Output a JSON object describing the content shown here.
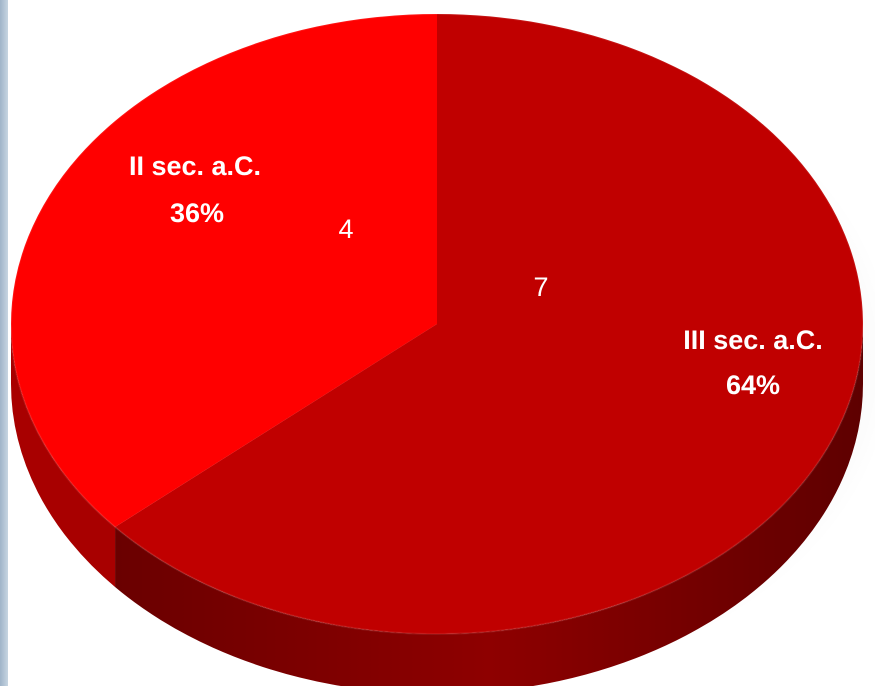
{
  "chart_data": {
    "type": "pie",
    "title": "",
    "slices": [
      {
        "category": "III sec. a.C.",
        "value": 7,
        "percent_label": "64%",
        "color": "#c00000"
      },
      {
        "category": "II sec. a.C.",
        "value": 4,
        "percent_label": "36%",
        "color": "#ff0000"
      }
    ],
    "style": "3d-tilted",
    "legend": "none"
  },
  "colors": {
    "slice_main": "#c00000",
    "slice_secondary": "#ff0000",
    "side_main": "#7d0000",
    "side_secondary": "#a80000",
    "label_text": "#ffffff"
  }
}
